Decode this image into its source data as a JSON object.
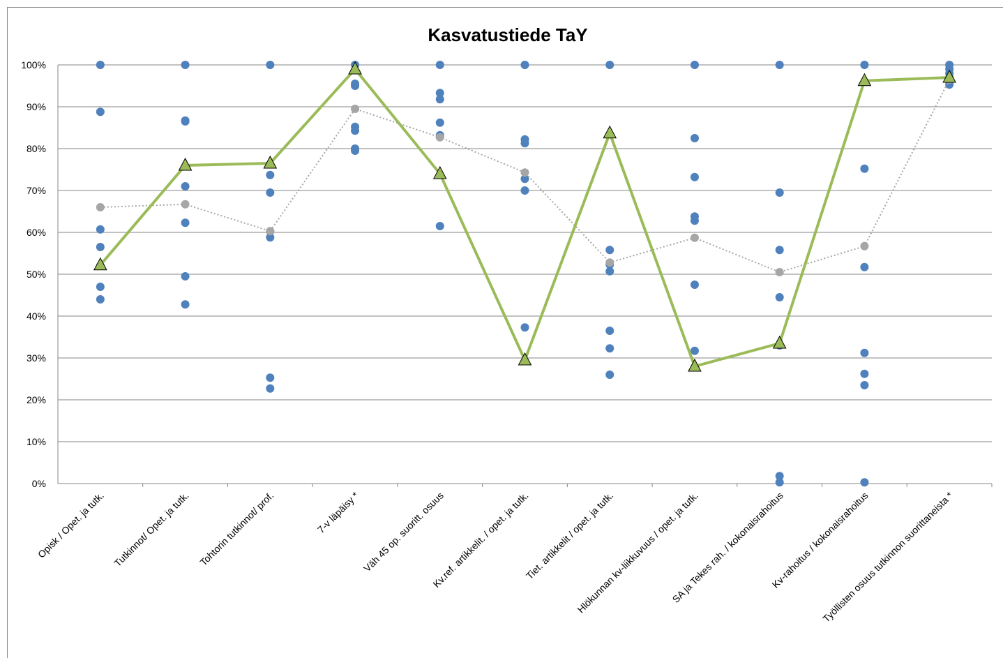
{
  "chart_data": {
    "type": "line",
    "title": "Kasvatustiede TaY",
    "categories": [
      "Opisk / Opet. ja tutk.",
      "Tutkinnot/ Opet. ja tutk.",
      "Tohtorin tutkinnot/ prof.",
      "7-v läpäisy *",
      "Väh 45 op. suoritt. osuus",
      "Kv.ref. artikkelit. / opet. ja tutk.",
      "Tiet. artikkelit / opet. ja tutk.",
      "Hlökunnan kv-liikkuvuus / opet. ja tutk.",
      "SA ja Tekes rah. / kokonaisrahoitus",
      "Kv-rahoitus / kokonaisrahoitus",
      "Työllisten osuus tutkinnon suorittaneista *"
    ],
    "ylim": [
      0,
      100
    ],
    "yticks": [
      {
        "value": 0,
        "label": "0%"
      },
      {
        "value": 10,
        "label": "10%"
      },
      {
        "value": 20,
        "label": "20%"
      },
      {
        "value": 30,
        "label": "30%"
      },
      {
        "value": 40,
        "label": "40%"
      },
      {
        "value": 50,
        "label": "50%"
      },
      {
        "value": 60,
        "label": "60%"
      },
      {
        "value": 70,
        "label": "70%"
      },
      {
        "value": 80,
        "label": "80%"
      },
      {
        "value": 90,
        "label": "90%"
      },
      {
        "value": 100,
        "label": "100%"
      }
    ],
    "grid": true,
    "series": [
      {
        "style": "dots",
        "color": "#4f81bd",
        "values": [
          [
            100,
            88.8,
            60.7,
            56.5,
            52,
            47,
            44
          ],
          [
            100,
            86.5,
            86.7,
            71,
            62.3,
            49.5,
            42.8
          ],
          [
            100,
            73.7,
            69.5,
            60.2,
            58.8,
            25.3,
            22.7
          ],
          [
            100,
            95.5,
            95,
            85.2,
            84.3,
            80,
            79.5
          ],
          [
            100,
            93.3,
            91.8,
            86.2,
            83.2,
            82.8,
            61.5
          ],
          [
            100,
            82.2,
            81.3,
            72.8,
            70,
            37.3
          ],
          [
            100,
            55.8,
            52.3,
            50.7,
            36.5,
            32.3,
            26
          ],
          [
            100,
            82.5,
            73.2,
            63.8,
            62.8,
            47.5,
            31.7
          ],
          [
            100,
            69.5,
            55.8,
            44.5,
            33,
            1.8,
            0.3
          ],
          [
            100,
            75.2,
            51.7,
            31.2,
            26.2,
            23.5,
            0.3
          ],
          [
            100,
            99,
            98,
            97,
            96,
            95.3
          ]
        ]
      },
      {
        "style": "dotted",
        "color": "#a6a6a6",
        "values": [
          66,
          66.7,
          60.3,
          89.5,
          82.7,
          74.3,
          52.8,
          58.7,
          50.5,
          56.7,
          96.5
        ]
      },
      {
        "style": "triangles",
        "color": "#9bbb59",
        "values": [
          52.2,
          76,
          76.5,
          99,
          74,
          29.5,
          83.7,
          28,
          33.5,
          96.2,
          97
        ]
      }
    ]
  }
}
